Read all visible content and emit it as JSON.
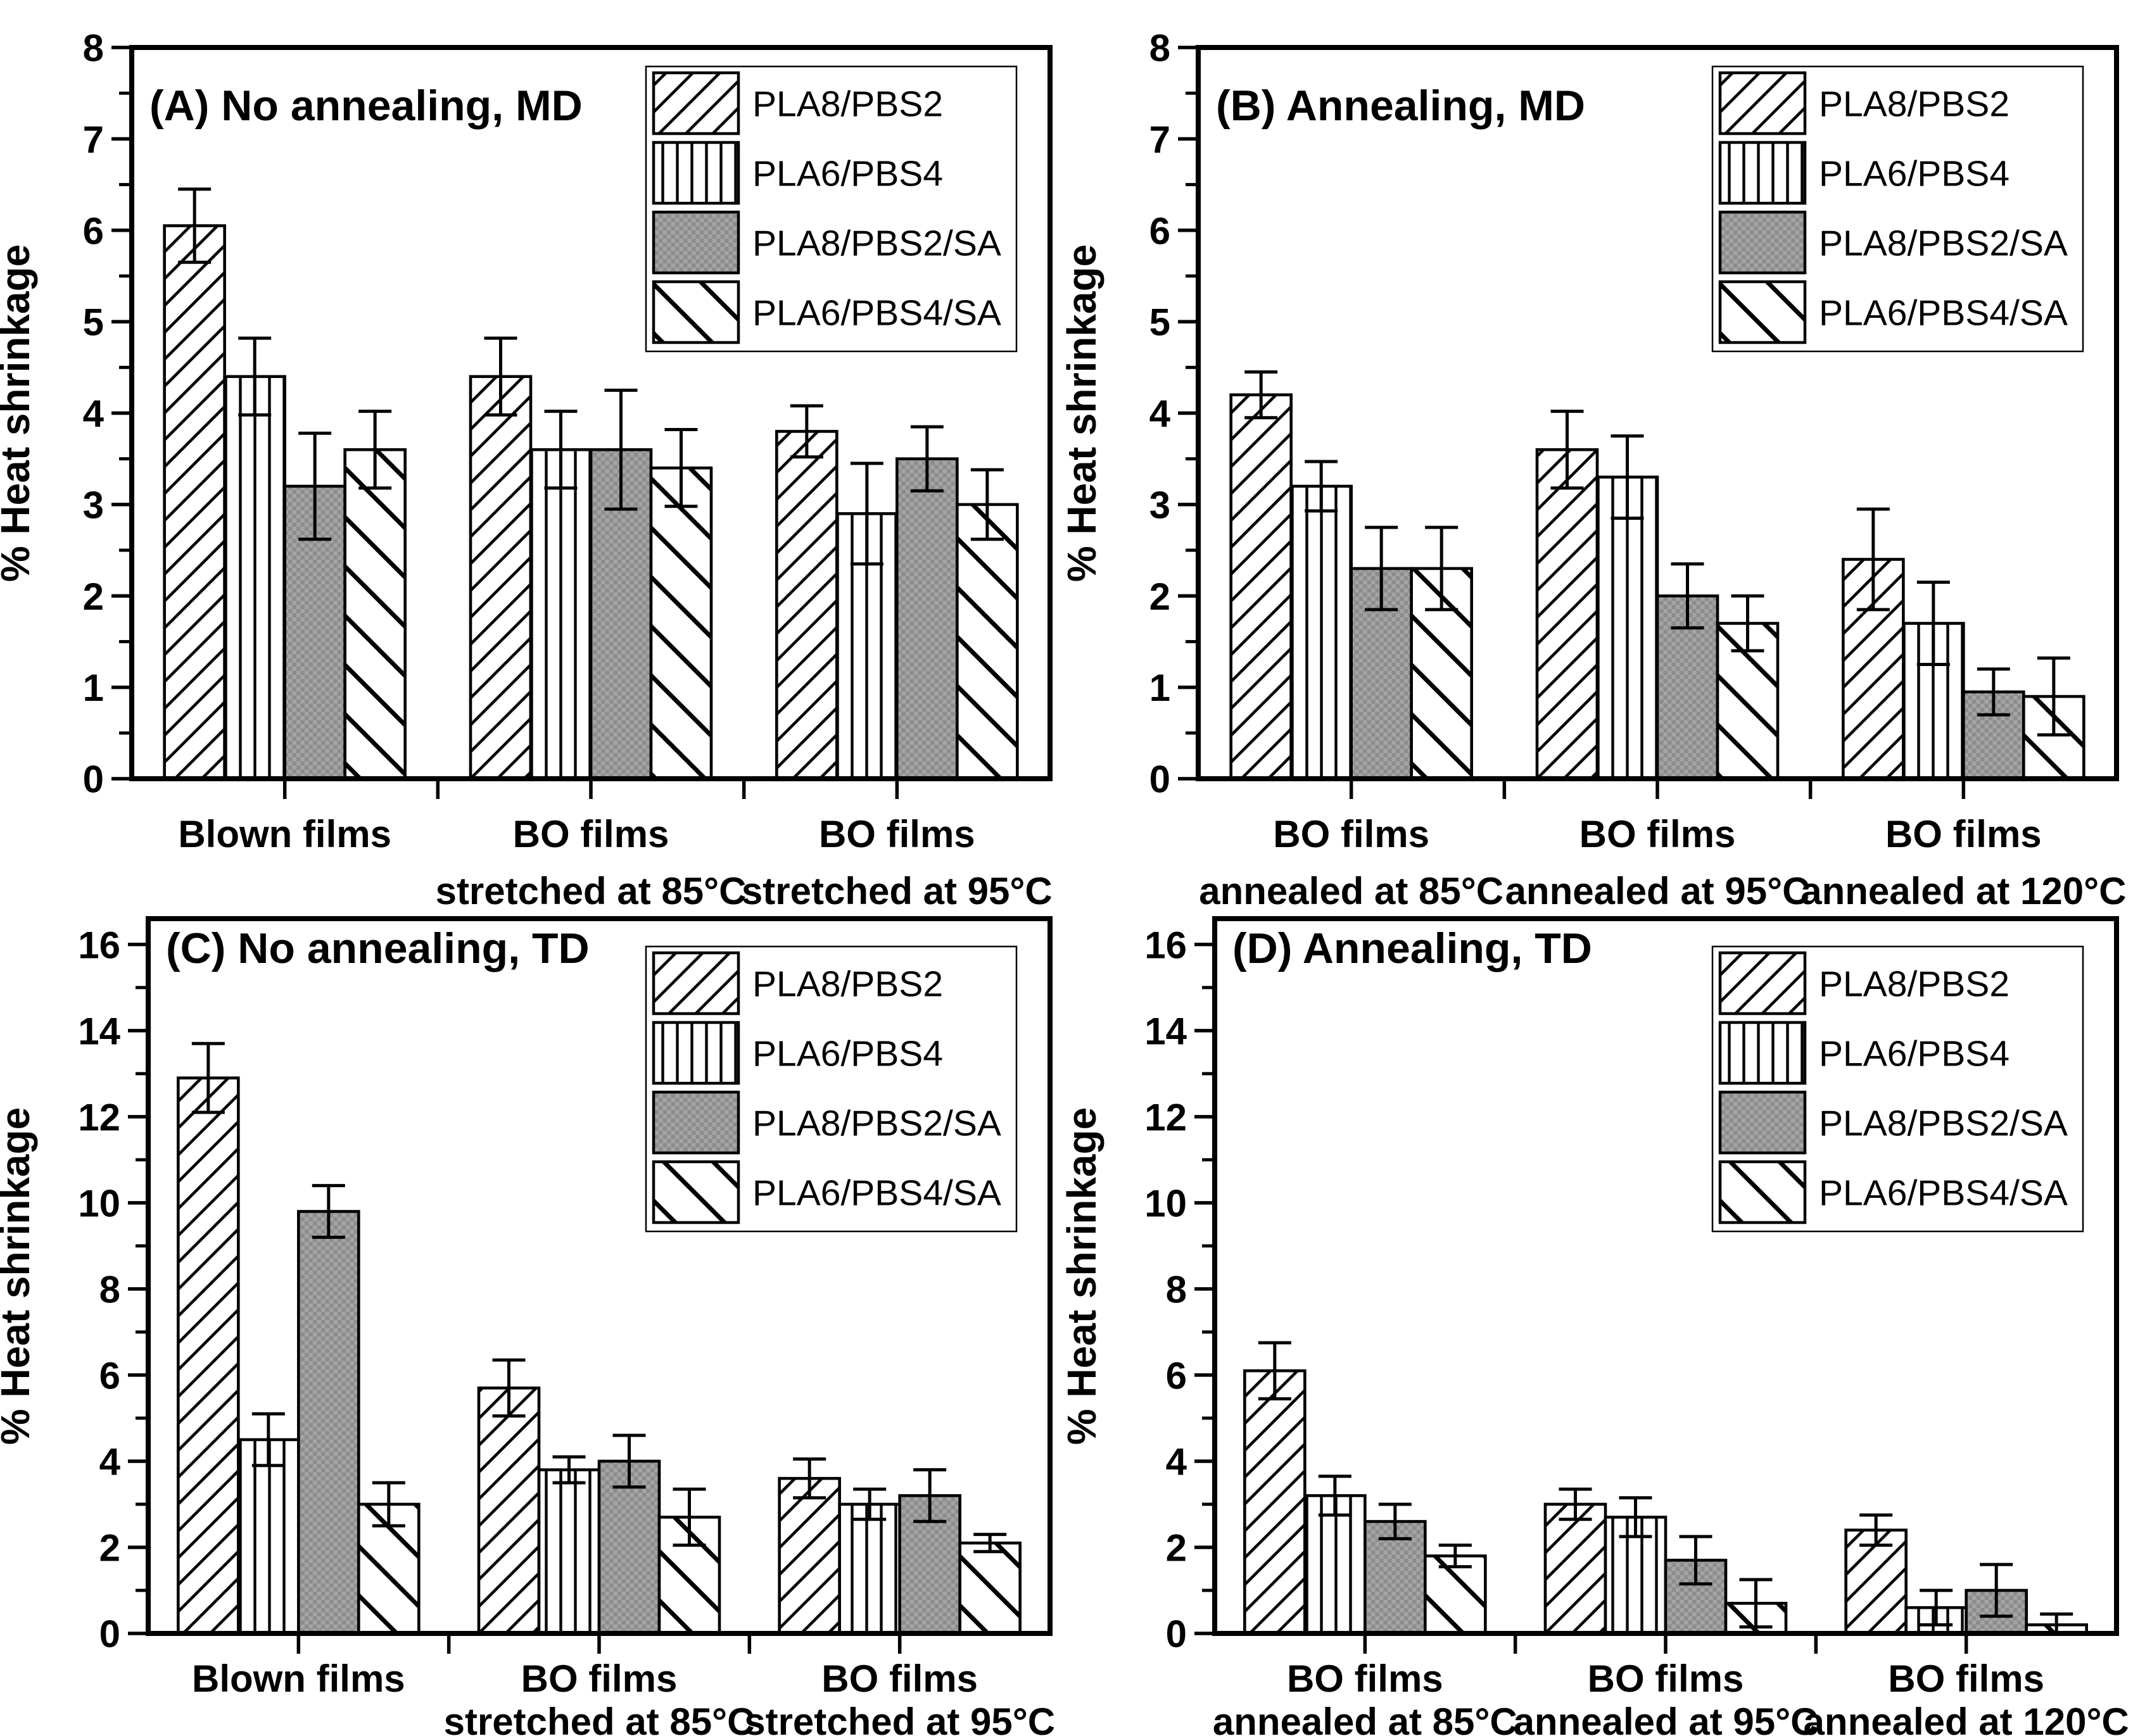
{
  "figure": {
    "background": "#ffffff",
    "ink_color": "#000000",
    "gray_fill_dark": "#8c8c8c",
    "gray_fill_light": "#a4a4a4",
    "ylabel": "% Heat shrinkage"
  },
  "legend": {
    "labels": [
      "PLA8/PBS2",
      "PLA6/PBS4",
      "PLA8/PBS2/SA",
      "PLA6/PBS4/SA"
    ],
    "position": "top-right-inside"
  },
  "chart_data": [
    {
      "type": "bar",
      "panel_label": "A",
      "title": "(A) No annealing, MD",
      "ylabel": "% Heat shrinkage",
      "ylim": [
        0,
        8
      ],
      "ytick_step": 1,
      "ytick_max": 8,
      "y_tick_labels": [
        "0",
        "1",
        "2",
        "3",
        "4",
        "5",
        "6",
        "7",
        "8"
      ],
      "grid": false,
      "legend_position": "top-right",
      "categories": [
        [
          "Blown films"
        ],
        [
          "BO films",
          "stretched at 85°C"
        ],
        [
          "BO films",
          "stretched at 95°C"
        ]
      ],
      "series": [
        {
          "name": "PLA8/PBS2",
          "pattern": "diagonal-up-hatch",
          "values": [
            6.05,
            4.4,
            3.8
          ],
          "errors": [
            0.4,
            0.42,
            0.28
          ]
        },
        {
          "name": "PLA6/PBS4",
          "pattern": "vertical-line-hatch",
          "values": [
            4.4,
            3.6,
            2.9
          ],
          "errors": [
            0.42,
            0.42,
            0.55
          ]
        },
        {
          "name": "PLA8/PBS2/SA",
          "pattern": "gray-checker",
          "values": [
            3.2,
            3.6,
            3.5
          ],
          "errors": [
            0.58,
            0.65,
            0.35
          ]
        },
        {
          "name": "PLA6/PBS4/SA",
          "pattern": "diagonal-down-hatch",
          "values": [
            3.6,
            3.4,
            3.0
          ],
          "errors": [
            0.42,
            0.42,
            0.38
          ]
        }
      ]
    },
    {
      "type": "bar",
      "panel_label": "B",
      "title": "(B) Annealing, MD",
      "ylabel": "% Heat shrinkage",
      "ylim": [
        0,
        8
      ],
      "ytick_step": 1,
      "ytick_max": 8,
      "y_tick_labels": [
        "0",
        "1",
        "2",
        "3",
        "4",
        "5",
        "6",
        "7",
        "8"
      ],
      "grid": false,
      "legend_position": "top-right",
      "categories": [
        [
          "BO films",
          "annealed at 85°C"
        ],
        [
          "BO films",
          "annealed at 95°C"
        ],
        [
          "BO films",
          "annealed at 120°C"
        ]
      ],
      "series": [
        {
          "name": "PLA8/PBS2",
          "pattern": "diagonal-up-hatch",
          "values": [
            4.2,
            3.6,
            2.4
          ],
          "errors": [
            0.25,
            0.42,
            0.55
          ]
        },
        {
          "name": "PLA6/PBS4",
          "pattern": "vertical-line-hatch",
          "values": [
            3.2,
            3.3,
            1.7
          ],
          "errors": [
            0.27,
            0.45,
            0.45
          ]
        },
        {
          "name": "PLA8/PBS2/SA",
          "pattern": "gray-checker",
          "values": [
            2.3,
            2.0,
            0.95
          ],
          "errors": [
            0.45,
            0.35,
            0.25
          ]
        },
        {
          "name": "PLA6/PBS4/SA",
          "pattern": "diagonal-down-hatch",
          "values": [
            2.3,
            1.7,
            0.9
          ],
          "errors": [
            0.45,
            0.3,
            0.42
          ]
        }
      ]
    },
    {
      "type": "bar",
      "panel_label": "C",
      "title": "(C) No annealing, TD",
      "ylabel": "% Heat shrinkage",
      "ylim": [
        0,
        16.6
      ],
      "ytick_step": 2,
      "ytick_max": 16,
      "y_tick_labels": [
        "0",
        "2",
        "4",
        "6",
        "8",
        "10",
        "12",
        "14",
        "16"
      ],
      "grid": false,
      "legend_position": "top-right",
      "categories": [
        [
          "Blown films"
        ],
        [
          "BO films",
          "stretched at 85°C"
        ],
        [
          "BO films",
          "stretched at 95°C"
        ]
      ],
      "series": [
        {
          "name": "PLA8/PBS2",
          "pattern": "diagonal-up-hatch",
          "values": [
            12.9,
            5.7,
            3.6
          ],
          "errors": [
            0.8,
            0.65,
            0.45
          ]
        },
        {
          "name": "PLA6/PBS4",
          "pattern": "vertical-line-hatch",
          "values": [
            4.5,
            3.8,
            3.0
          ],
          "errors": [
            0.6,
            0.3,
            0.35
          ]
        },
        {
          "name": "PLA8/PBS2/SA",
          "pattern": "gray-checker",
          "values": [
            9.8,
            4.0,
            3.2
          ],
          "errors": [
            0.6,
            0.6,
            0.6
          ]
        },
        {
          "name": "PLA6/PBS4/SA",
          "pattern": "diagonal-down-hatch",
          "values": [
            3.0,
            2.7,
            2.1
          ],
          "errors": [
            0.5,
            0.65,
            0.2
          ]
        }
      ]
    },
    {
      "type": "bar",
      "panel_label": "D",
      "title": "(D) Annealing, TD",
      "ylabel": "% Heat shrinkage",
      "ylim": [
        0,
        16.6
      ],
      "ytick_step": 2,
      "ytick_max": 16,
      "y_tick_labels": [
        "0",
        "2",
        "4",
        "6",
        "8",
        "10",
        "12",
        "14",
        "16"
      ],
      "grid": false,
      "legend_position": "top-right",
      "categories": [
        [
          "BO films",
          "annealed at 85°C"
        ],
        [
          "BO films",
          "annealed at 95°C"
        ],
        [
          "BO films",
          "annealed at 120°C"
        ]
      ],
      "series": [
        {
          "name": "PLA8/PBS2",
          "pattern": "diagonal-up-hatch",
          "values": [
            6.1,
            3.0,
            2.4
          ],
          "errors": [
            0.65,
            0.35,
            0.35
          ]
        },
        {
          "name": "PLA6/PBS4",
          "pattern": "vertical-line-hatch",
          "values": [
            3.2,
            2.7,
            0.6
          ],
          "errors": [
            0.45,
            0.45,
            0.4
          ]
        },
        {
          "name": "PLA8/PBS2/SA",
          "pattern": "gray-checker",
          "values": [
            2.6,
            1.7,
            1.0
          ],
          "errors": [
            0.4,
            0.55,
            0.6
          ]
        },
        {
          "name": "PLA6/PBS4/SA",
          "pattern": "diagonal-down-hatch",
          "values": [
            1.8,
            0.7,
            0.2
          ],
          "errors": [
            0.25,
            0.55,
            0.25
          ]
        }
      ]
    }
  ]
}
